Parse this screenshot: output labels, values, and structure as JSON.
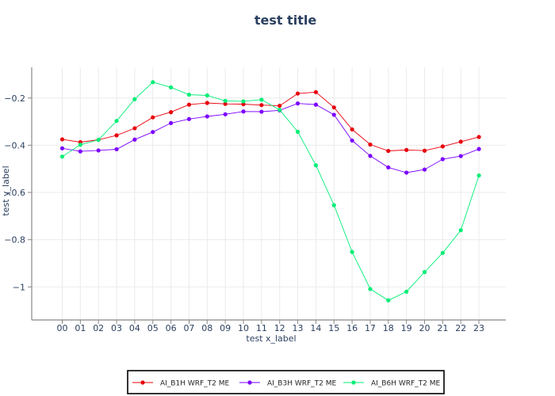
{
  "chart_data": {
    "type": "line",
    "title": "test title",
    "xlabel": "test x_label",
    "ylabel": "test y_label",
    "x": [
      "00",
      "01",
      "02",
      "03",
      "04",
      "05",
      "06",
      "07",
      "08",
      "09",
      "10",
      "11",
      "12",
      "13",
      "14",
      "15",
      "16",
      "17",
      "18",
      "19",
      "20",
      "21",
      "22",
      "23"
    ],
    "ylim": [
      -1.14,
      -0.07
    ],
    "yticks": [
      -1,
      -0.8,
      -0.6,
      -0.4,
      -0.2
    ],
    "ytick_labels": [
      "−1",
      "−0.8",
      "−0.6",
      "−0.4",
      "−0.2"
    ],
    "grid": true,
    "legend_position": "bottom",
    "series": [
      {
        "name": "AI_B1H WRF_T2 ME",
        "color": "#e8000b",
        "values": [
          -0.375,
          -0.387,
          -0.377,
          -0.358,
          -0.328,
          -0.282,
          -0.26,
          -0.228,
          -0.221,
          -0.225,
          -0.226,
          -0.23,
          -0.233,
          -0.181,
          -0.175,
          -0.24,
          -0.333,
          -0.397,
          -0.424,
          -0.42,
          -0.423,
          -0.405,
          -0.385,
          -0.365
        ]
      },
      {
        "name": "AI_B3H WRF_T2 ME",
        "color": "#7b00ff",
        "values": [
          -0.413,
          -0.426,
          -0.422,
          -0.417,
          -0.376,
          -0.344,
          -0.306,
          -0.289,
          -0.278,
          -0.269,
          -0.257,
          -0.258,
          -0.252,
          -0.223,
          -0.228,
          -0.271,
          -0.38,
          -0.445,
          -0.494,
          -0.516,
          -0.503,
          -0.459,
          -0.446,
          -0.416
        ]
      },
      {
        "name": "AI_B6H WRF_T2 ME",
        "color": "#00ee76",
        "values": [
          -0.448,
          -0.398,
          -0.377,
          -0.297,
          -0.205,
          -0.133,
          -0.155,
          -0.186,
          -0.189,
          -0.212,
          -0.214,
          -0.207,
          -0.25,
          -0.343,
          -0.485,
          -0.654,
          -0.852,
          -1.009,
          -1.057,
          -1.02,
          -0.937,
          -0.856,
          -0.76,
          -0.528
        ]
      }
    ]
  }
}
